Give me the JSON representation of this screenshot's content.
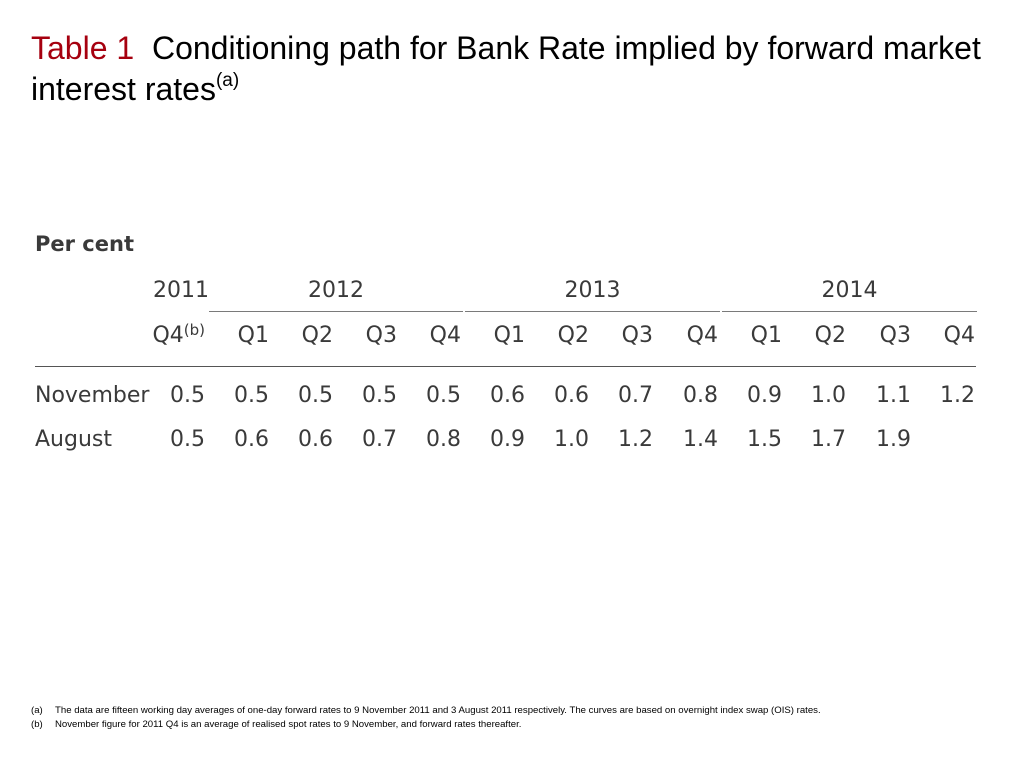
{
  "title": {
    "table_number": "Table 1",
    "text": "Conditioning path for Bank Rate implied by forward market interest rates",
    "note_mark": "(a)"
  },
  "table": {
    "units": "Per cent",
    "years": [
      "2011",
      "2012",
      "2013",
      "2014"
    ],
    "quarters": [
      "Q4",
      "Q1",
      "Q2",
      "Q3",
      "Q4",
      "Q1",
      "Q2",
      "Q3",
      "Q4",
      "Q1",
      "Q2",
      "Q3",
      "Q4"
    ],
    "first_quarter_note": "(b)",
    "rows": [
      {
        "label": "November",
        "values": [
          "0.5",
          "0.5",
          "0.5",
          "0.5",
          "0.5",
          "0.6",
          "0.6",
          "0.7",
          "0.8",
          "0.9",
          "1.0",
          "1.1",
          "1.2"
        ]
      },
      {
        "label": "August",
        "values": [
          "0.5",
          "0.6",
          "0.6",
          "0.7",
          "0.8",
          "0.9",
          "1.0",
          "1.2",
          "1.4",
          "1.5",
          "1.7",
          "1.9",
          ""
        ]
      }
    ]
  },
  "footnotes": [
    {
      "mark": "(a)",
      "text": "The data are fifteen working day averages of one-day forward rates to 9 November 2011 and 3 August 2011 respectively.  The curves are based on overnight index swap (OIS) rates."
    },
    {
      "mark": "(b)",
      "text": "November figure for 2011 Q4 is an average of realised spot rates to 9 November, and forward rates thereafter."
    }
  ],
  "colors": {
    "title_accent": "#a6000f",
    "table_text": "#3a3a3a"
  }
}
